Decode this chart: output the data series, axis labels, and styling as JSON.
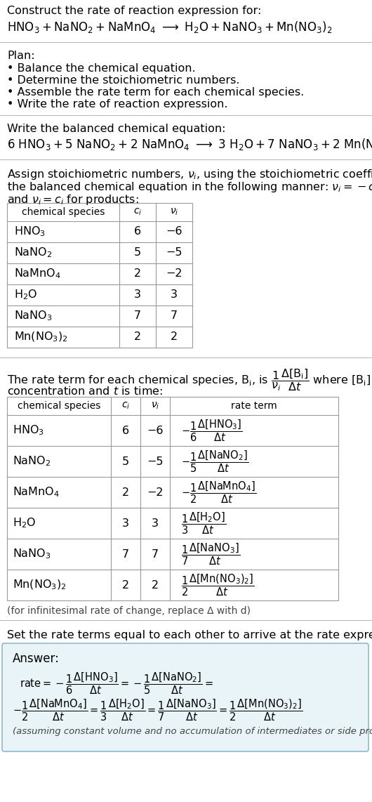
{
  "bg_color": "#ffffff",
  "text_color": "#000000",
  "title_line1": "Construct the rate of reaction expression for:",
  "plan_header": "Plan:",
  "plan_items": [
    "• Balance the chemical equation.",
    "• Determine the stoichiometric numbers.",
    "• Assemble the rate term for each chemical species.",
    "• Write the rate of reaction expression."
  ],
  "balanced_header": "Write the balanced chemical equation:",
  "stoich_header_line1": "Assign stoichiometric numbers, ν_i, using the stoichiometric coefficients, c_i, from",
  "stoich_header_line2": "the balanced chemical equation in the following manner: ν_i = −c_i for reactants",
  "stoich_header_line3": "and ν_i = c_i for products:",
  "table1_col0": "chemical species",
  "table1_col1": "c_i",
  "table1_col2": "ν_i",
  "table1_species": [
    "HNO_3",
    "NaNO_2",
    "NaMnO_4",
    "H_2O",
    "NaNO_3",
    "Mn(NO_3)_2"
  ],
  "table1_ci": [
    "6",
    "5",
    "2",
    "3",
    "7",
    "2"
  ],
  "table1_nu": [
    "−6",
    "−5",
    "−2",
    "3",
    "7",
    "2"
  ],
  "rate_desc_line1": "The rate term for each chemical species, B_i, is",
  "rate_desc_line2": "concentration and t is time:",
  "table2_col0": "chemical species",
  "table2_col1": "c_i",
  "table2_col2": "ν_i",
  "table2_col3": "rate term",
  "table2_species": [
    "HNO_3",
    "NaNO_2",
    "NaMnO_4",
    "H_2O",
    "NaNO_3",
    "Mn(NO_3)_2"
  ],
  "table2_ci": [
    "6",
    "5",
    "2",
    "3",
    "7",
    "2"
  ],
  "table2_nu": [
    "−6",
    "−5",
    "−2",
    "3",
    "7",
    "2"
  ],
  "table2_signs": [
    "-",
    "-",
    "-",
    "+",
    "+",
    "+"
  ],
  "table2_denoms": [
    "6",
    "5",
    "2",
    "3",
    "7",
    "2"
  ],
  "infinitesimal_note": "(for infinitesimal rate of change, replace Δ with d)",
  "set_equal_text": "Set the rate terms equal to each other to arrive at the rate expression:",
  "answer_box_color": "#e8f4f8",
  "answer_border_color": "#90b8d0",
  "answer_label": "Answer:",
  "answer_note": "(assuming constant volume and no accumulation of intermediates or side products)"
}
